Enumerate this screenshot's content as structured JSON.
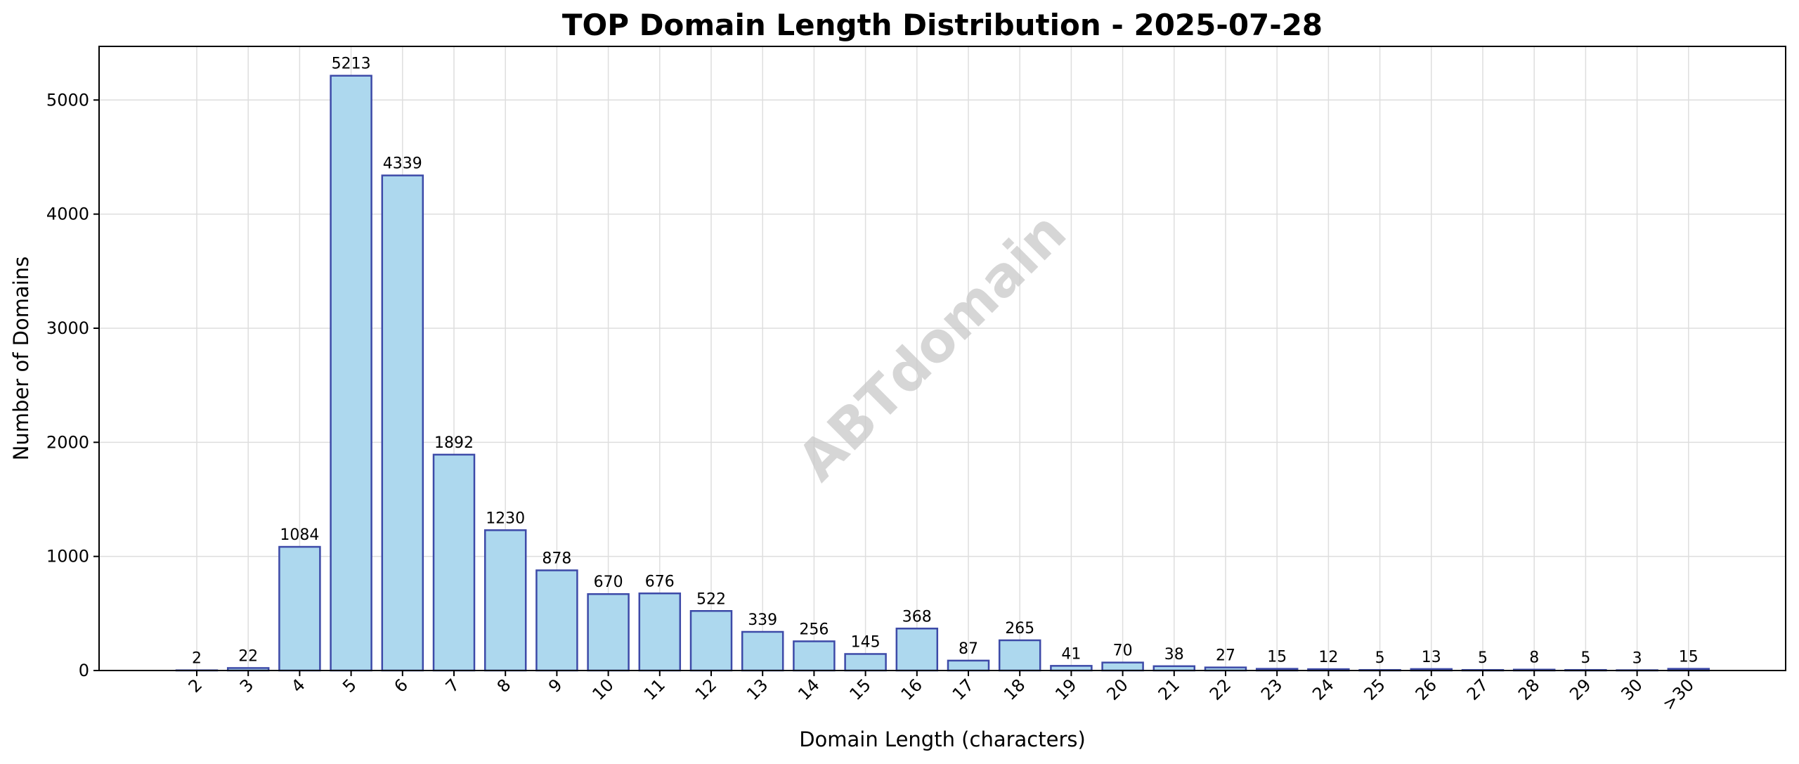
{
  "chart_data": {
    "type": "bar",
    "title": "TOP Domain Length Distribution - 2025-07-28",
    "xlabel": "Domain Length (characters)",
    "ylabel": "Number of Domains",
    "categories": [
      "2",
      "3",
      "4",
      "5",
      "6",
      "7",
      "8",
      "9",
      "10",
      "11",
      "12",
      "13",
      "14",
      "15",
      "16",
      "17",
      "18",
      "19",
      "20",
      "21",
      "22",
      "23",
      "24",
      "25",
      "26",
      "27",
      "28",
      "29",
      "30",
      ">30"
    ],
    "values": [
      2,
      22,
      1084,
      5213,
      4339,
      1892,
      1230,
      878,
      670,
      676,
      522,
      339,
      256,
      145,
      368,
      87,
      265,
      41,
      70,
      38,
      27,
      15,
      12,
      5,
      13,
      5,
      8,
      5,
      3,
      15
    ],
    "data_labels": [
      "2",
      "22",
      "1084",
      "5213",
      "4339",
      "1892",
      "1230",
      "878",
      "670",
      "676",
      "522",
      "339",
      "256",
      "145",
      "368",
      "87",
      "265",
      "41",
      "70",
      "38",
      "27",
      "15",
      "12",
      "5",
      "13",
      "5",
      "8",
      "5",
      "3",
      "15"
    ],
    "ylim": [
      0,
      5470
    ],
    "yticks": [
      0,
      1000,
      2000,
      3000,
      4000,
      5000
    ],
    "ytick_labels": [
      "0",
      "1000",
      "2000",
      "3000",
      "4000",
      "5000"
    ],
    "grid": true,
    "legend": "none",
    "colors": {
      "bar_fill": "#add8ee",
      "bar_edge": "#3d4aa8",
      "watermark": "#c8c8c8"
    },
    "watermark": "ABTdomain"
  }
}
